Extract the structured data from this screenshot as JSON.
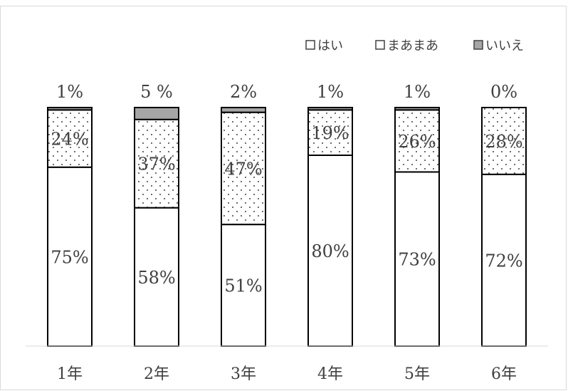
{
  "chart_data": {
    "type": "bar",
    "stacked": true,
    "categories": [
      "1年",
      "2年",
      "3年",
      "4年",
      "5年",
      "6年"
    ],
    "series": [
      {
        "name": "はい",
        "values": [
          75,
          58,
          51,
          80,
          73,
          72
        ],
        "labels": [
          "75%",
          "58%",
          "51%",
          "80%",
          "73%",
          "72%"
        ],
        "fill": "#ffffff",
        "pattern": "none"
      },
      {
        "name": "まあまあ",
        "values": [
          24,
          37,
          47,
          19,
          26,
          28
        ],
        "labels": [
          "24%",
          "37%",
          "47%",
          "19%",
          "26%",
          "28%"
        ],
        "fill": "#ffffff",
        "pattern": "dots"
      },
      {
        "name": "いいえ",
        "values": [
          1,
          5,
          2,
          1,
          1,
          0
        ],
        "labels": [
          "1%",
          "5 %",
          "2%",
          "1%",
          "1%",
          "0%"
        ],
        "fill": "#a6a6a6",
        "pattern": "none"
      }
    ],
    "ylim": [
      0,
      100
    ],
    "legend_position": "top-right",
    "grid": false,
    "title": "",
    "xlabel": "",
    "ylabel": ""
  }
}
